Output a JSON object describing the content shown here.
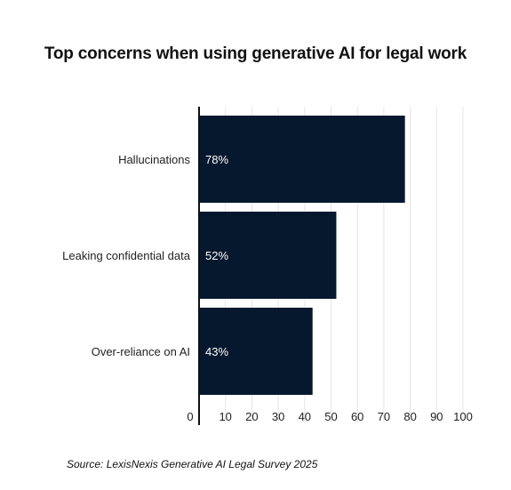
{
  "chart_data": {
    "type": "bar",
    "orientation": "horizontal",
    "title": "Top concerns when using generative AI for legal work",
    "categories": [
      "Hallucinations",
      "Leaking confidential data",
      "Over-reliance on AI"
    ],
    "values": [
      78,
      52,
      43
    ],
    "data_labels": [
      "78%",
      "52%",
      "43%"
    ],
    "xlim": [
      0,
      100
    ],
    "xticks": [
      0,
      10,
      20,
      30,
      40,
      50,
      60,
      70,
      80,
      90,
      100
    ],
    "grid": "vertical",
    "bar_color": "#06182e",
    "source": "Source: LexisNexis Generative AI Legal Survey 2025"
  }
}
